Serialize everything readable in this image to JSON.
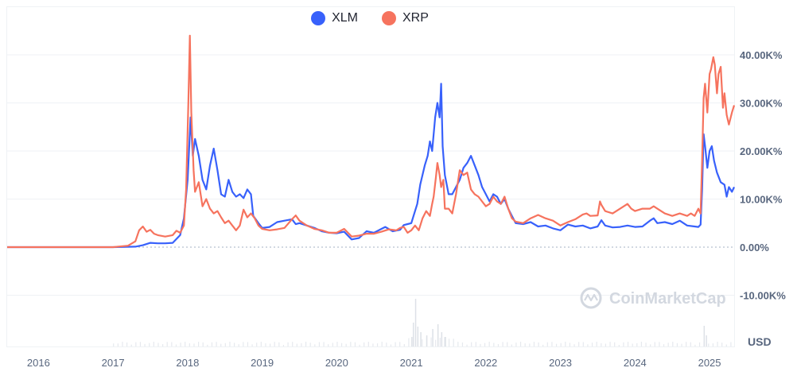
{
  "chart_data": {
    "type": "line",
    "currency_label": "USD",
    "watermark": "CoinMarketCap",
    "x_tick_labels": [
      "2016",
      "2017",
      "2018",
      "2019",
      "2020",
      "2021",
      "2022",
      "2023",
      "2024",
      "2025"
    ],
    "y_tick_labels": [
      "40.00K%",
      "30.00K%",
      "20.00K%",
      "10.00K%",
      "0.00%",
      "-10.00K%"
    ],
    "y_tick_values": [
      40000,
      30000,
      20000,
      10000,
      0,
      -10000
    ],
    "xlim": [
      2015.58,
      2025.33
    ],
    "ylim": [
      -10000,
      50000
    ],
    "legend": {
      "position": "top-center"
    },
    "series": [
      {
        "name": "XLM",
        "color": "#3861fb",
        "points": [
          [
            2015.58,
            0
          ],
          [
            2016.0,
            0
          ],
          [
            2016.5,
            0
          ],
          [
            2017.0,
            0
          ],
          [
            2017.3,
            100
          ],
          [
            2017.4,
            400
          ],
          [
            2017.5,
            900
          ],
          [
            2017.6,
            800
          ],
          [
            2017.7,
            800
          ],
          [
            2017.8,
            900
          ],
          [
            2017.9,
            2500
          ],
          [
            2017.95,
            6000
          ],
          [
            2018.0,
            14000
          ],
          [
            2018.04,
            27000
          ],
          [
            2018.07,
            19000
          ],
          [
            2018.1,
            22500
          ],
          [
            2018.15,
            19000
          ],
          [
            2018.2,
            14000
          ],
          [
            2018.25,
            12000
          ],
          [
            2018.3,
            17000
          ],
          [
            2018.35,
            20500
          ],
          [
            2018.4,
            16000
          ],
          [
            2018.45,
            11000
          ],
          [
            2018.5,
            10500
          ],
          [
            2018.55,
            14000
          ],
          [
            2018.6,
            11500
          ],
          [
            2018.65,
            10500
          ],
          [
            2018.7,
            11000
          ],
          [
            2018.75,
            10200
          ],
          [
            2018.8,
            12000
          ],
          [
            2018.85,
            11000
          ],
          [
            2018.88,
            6500
          ],
          [
            2018.95,
            5000
          ],
          [
            2019.0,
            4000
          ],
          [
            2019.1,
            4200
          ],
          [
            2019.2,
            5200
          ],
          [
            2019.3,
            5500
          ],
          [
            2019.4,
            5800
          ],
          [
            2019.45,
            4800
          ],
          [
            2019.5,
            5000
          ],
          [
            2019.6,
            4500
          ],
          [
            2019.7,
            4000
          ],
          [
            2019.8,
            3300
          ],
          [
            2019.9,
            3000
          ],
          [
            2020.0,
            2900
          ],
          [
            2020.1,
            3200
          ],
          [
            2020.2,
            1600
          ],
          [
            2020.3,
            1900
          ],
          [
            2020.4,
            3300
          ],
          [
            2020.5,
            3000
          ],
          [
            2020.6,
            3800
          ],
          [
            2020.65,
            4200
          ],
          [
            2020.75,
            3300
          ],
          [
            2020.85,
            3600
          ],
          [
            2020.9,
            4600
          ],
          [
            2020.95,
            4800
          ],
          [
            2021.0,
            5000
          ],
          [
            2021.05,
            7500
          ],
          [
            2021.08,
            9000
          ],
          [
            2021.12,
            13000
          ],
          [
            2021.18,
            17000
          ],
          [
            2021.22,
            19000
          ],
          [
            2021.25,
            22000
          ],
          [
            2021.28,
            20000
          ],
          [
            2021.32,
            27000
          ],
          [
            2021.35,
            30000
          ],
          [
            2021.38,
            27000
          ],
          [
            2021.4,
            34000
          ],
          [
            2021.42,
            21000
          ],
          [
            2021.45,
            15000
          ],
          [
            2021.5,
            11000
          ],
          [
            2021.55,
            11000
          ],
          [
            2021.6,
            12500
          ],
          [
            2021.65,
            14000
          ],
          [
            2021.7,
            16500
          ],
          [
            2021.75,
            17500
          ],
          [
            2021.8,
            19000
          ],
          [
            2021.85,
            17000
          ],
          [
            2021.9,
            15000
          ],
          [
            2021.95,
            12500
          ],
          [
            2022.0,
            11000
          ],
          [
            2022.05,
            9500
          ],
          [
            2022.1,
            11000
          ],
          [
            2022.15,
            10500
          ],
          [
            2022.2,
            9000
          ],
          [
            2022.25,
            10000
          ],
          [
            2022.3,
            8000
          ],
          [
            2022.35,
            6500
          ],
          [
            2022.4,
            5000
          ],
          [
            2022.5,
            4800
          ],
          [
            2022.6,
            5200
          ],
          [
            2022.7,
            4300
          ],
          [
            2022.8,
            4500
          ],
          [
            2022.9,
            3900
          ],
          [
            2023.0,
            3500
          ],
          [
            2023.1,
            4700
          ],
          [
            2023.2,
            4300
          ],
          [
            2023.3,
            4500
          ],
          [
            2023.4,
            3900
          ],
          [
            2023.5,
            4300
          ],
          [
            2023.55,
            5600
          ],
          [
            2023.6,
            4500
          ],
          [
            2023.7,
            4100
          ],
          [
            2023.8,
            4200
          ],
          [
            2023.9,
            4500
          ],
          [
            2024.0,
            4200
          ],
          [
            2024.1,
            4300
          ],
          [
            2024.2,
            5500
          ],
          [
            2024.25,
            6000
          ],
          [
            2024.3,
            5000
          ],
          [
            2024.4,
            5200
          ],
          [
            2024.5,
            4800
          ],
          [
            2024.6,
            5500
          ],
          [
            2024.7,
            4500
          ],
          [
            2024.8,
            4300
          ],
          [
            2024.85,
            4200
          ],
          [
            2024.88,
            4700
          ],
          [
            2024.9,
            12000
          ],
          [
            2024.92,
            23500
          ],
          [
            2024.94,
            21000
          ],
          [
            2024.97,
            16500
          ],
          [
            2025.0,
            20000
          ],
          [
            2025.03,
            21000
          ],
          [
            2025.06,
            18000
          ],
          [
            2025.1,
            15500
          ],
          [
            2025.15,
            13500
          ],
          [
            2025.2,
            13000
          ],
          [
            2025.23,
            10500
          ],
          [
            2025.26,
            12500
          ],
          [
            2025.3,
            11500
          ],
          [
            2025.33,
            12500
          ]
        ]
      },
      {
        "name": "XRP",
        "color": "#f6735e",
        "points": [
          [
            2015.58,
            0
          ],
          [
            2016.0,
            0
          ],
          [
            2016.5,
            0
          ],
          [
            2017.0,
            0
          ],
          [
            2017.2,
            300
          ],
          [
            2017.3,
            1200
          ],
          [
            2017.35,
            3500
          ],
          [
            2017.4,
            4300
          ],
          [
            2017.45,
            3200
          ],
          [
            2017.5,
            3600
          ],
          [
            2017.55,
            2800
          ],
          [
            2017.6,
            2500
          ],
          [
            2017.7,
            2200
          ],
          [
            2017.8,
            2500
          ],
          [
            2017.85,
            3400
          ],
          [
            2017.9,
            3000
          ],
          [
            2017.95,
            4500
          ],
          [
            2017.98,
            12000
          ],
          [
            2018.01,
            30000
          ],
          [
            2018.03,
            44000
          ],
          [
            2018.05,
            28000
          ],
          [
            2018.08,
            16000
          ],
          [
            2018.1,
            11500
          ],
          [
            2018.15,
            13500
          ],
          [
            2018.2,
            8500
          ],
          [
            2018.25,
            10000
          ],
          [
            2018.3,
            8000
          ],
          [
            2018.35,
            7000
          ],
          [
            2018.4,
            7500
          ],
          [
            2018.45,
            6200
          ],
          [
            2018.5,
            5000
          ],
          [
            2018.55,
            5500
          ],
          [
            2018.6,
            4500
          ],
          [
            2018.65,
            3500
          ],
          [
            2018.7,
            4500
          ],
          [
            2018.75,
            7800
          ],
          [
            2018.8,
            6200
          ],
          [
            2018.85,
            7000
          ],
          [
            2018.9,
            6000
          ],
          [
            2018.95,
            4500
          ],
          [
            2019.0,
            3800
          ],
          [
            2019.1,
            3500
          ],
          [
            2019.2,
            3700
          ],
          [
            2019.3,
            4000
          ],
          [
            2019.4,
            5800
          ],
          [
            2019.45,
            6600
          ],
          [
            2019.5,
            5500
          ],
          [
            2019.6,
            4500
          ],
          [
            2019.7,
            3800
          ],
          [
            2019.8,
            3500
          ],
          [
            2019.9,
            3000
          ],
          [
            2020.0,
            3000
          ],
          [
            2020.1,
            3800
          ],
          [
            2020.2,
            2200
          ],
          [
            2020.3,
            2400
          ],
          [
            2020.4,
            2800
          ],
          [
            2020.5,
            2800
          ],
          [
            2020.6,
            3200
          ],
          [
            2020.7,
            3700
          ],
          [
            2020.8,
            3500
          ],
          [
            2020.85,
            4000
          ],
          [
            2020.9,
            4200
          ],
          [
            2020.95,
            3000
          ],
          [
            2021.0,
            3500
          ],
          [
            2021.05,
            4500
          ],
          [
            2021.1,
            3500
          ],
          [
            2021.15,
            6000
          ],
          [
            2021.2,
            7500
          ],
          [
            2021.25,
            6500
          ],
          [
            2021.28,
            9000
          ],
          [
            2021.3,
            10500
          ],
          [
            2021.33,
            14500
          ],
          [
            2021.35,
            17500
          ],
          [
            2021.38,
            15000
          ],
          [
            2021.4,
            12500
          ],
          [
            2021.43,
            14000
          ],
          [
            2021.45,
            8000
          ],
          [
            2021.5,
            8000
          ],
          [
            2021.55,
            7000
          ],
          [
            2021.6,
            11000
          ],
          [
            2021.65,
            16000
          ],
          [
            2021.7,
            15000
          ],
          [
            2021.75,
            15500
          ],
          [
            2021.8,
            12000
          ],
          [
            2021.85,
            11000
          ],
          [
            2021.9,
            10500
          ],
          [
            2021.95,
            9500
          ],
          [
            2022.0,
            8500
          ],
          [
            2022.05,
            9000
          ],
          [
            2022.1,
            10500
          ],
          [
            2022.15,
            9500
          ],
          [
            2022.2,
            9000
          ],
          [
            2022.25,
            10500
          ],
          [
            2022.3,
            8000
          ],
          [
            2022.35,
            6000
          ],
          [
            2022.4,
            5300
          ],
          [
            2022.5,
            5000
          ],
          [
            2022.6,
            6000
          ],
          [
            2022.7,
            6700
          ],
          [
            2022.8,
            6000
          ],
          [
            2022.9,
            5500
          ],
          [
            2023.0,
            4500
          ],
          [
            2023.1,
            5200
          ],
          [
            2023.2,
            5800
          ],
          [
            2023.3,
            6800
          ],
          [
            2023.35,
            7000
          ],
          [
            2023.4,
            6500
          ],
          [
            2023.5,
            6600
          ],
          [
            2023.53,
            9500
          ],
          [
            2023.55,
            8800
          ],
          [
            2023.6,
            7500
          ],
          [
            2023.7,
            7000
          ],
          [
            2023.8,
            8000
          ],
          [
            2023.85,
            8500
          ],
          [
            2023.9,
            9000
          ],
          [
            2023.95,
            8000
          ],
          [
            2024.0,
            7500
          ],
          [
            2024.1,
            8000
          ],
          [
            2024.2,
            8000
          ],
          [
            2024.25,
            8500
          ],
          [
            2024.3,
            8000
          ],
          [
            2024.4,
            7000
          ],
          [
            2024.5,
            6500
          ],
          [
            2024.6,
            7000
          ],
          [
            2024.7,
            6500
          ],
          [
            2024.75,
            7000
          ],
          [
            2024.8,
            6500
          ],
          [
            2024.85,
            8000
          ],
          [
            2024.88,
            7000
          ],
          [
            2024.9,
            18000
          ],
          [
            2024.92,
            31000
          ],
          [
            2024.94,
            34000
          ],
          [
            2024.97,
            28000
          ],
          [
            2025.0,
            36000
          ],
          [
            2025.02,
            37000
          ],
          [
            2025.05,
            39500
          ],
          [
            2025.07,
            38000
          ],
          [
            2025.1,
            32000
          ],
          [
            2025.12,
            36000
          ],
          [
            2025.15,
            37500
          ],
          [
            2025.18,
            29000
          ],
          [
            2025.2,
            32000
          ],
          [
            2025.23,
            27500
          ],
          [
            2025.26,
            25500
          ],
          [
            2025.3,
            28000
          ],
          [
            2025.33,
            29500
          ]
        ]
      }
    ]
  }
}
